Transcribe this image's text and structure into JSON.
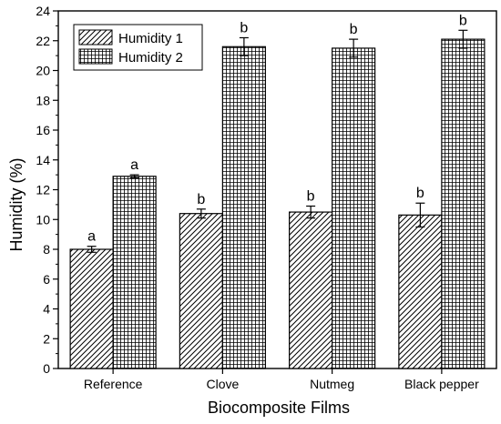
{
  "chart_data": {
    "type": "bar",
    "title": "",
    "xlabel": "Biocomposite Films",
    "ylabel": "Humidity (%)",
    "ylim": [
      0,
      24
    ],
    "yticks": [
      0,
      2,
      4,
      6,
      8,
      10,
      12,
      14,
      16,
      18,
      20,
      22,
      24
    ],
    "categories": [
      "Reference",
      "Clove",
      "Nutmeg",
      "Black pepper"
    ],
    "series": [
      {
        "name": "Humidity 1",
        "pattern": "diagonal-hatch",
        "values": [
          8.0,
          10.4,
          10.5,
          10.3
        ],
        "errors": [
          0.2,
          0.3,
          0.4,
          0.8
        ],
        "letters": [
          "a",
          "b",
          "b",
          "b"
        ]
      },
      {
        "name": "Humidity 2",
        "pattern": "grid-hatch",
        "values": [
          12.9,
          21.6,
          21.5,
          22.1
        ],
        "errors": [
          0.1,
          0.6,
          0.6,
          0.6
        ],
        "letters": [
          "a",
          "b",
          "b",
          "b"
        ]
      }
    ],
    "legend_position": "top-left",
    "grid": false
  },
  "colors": {
    "bar_fill": "#ffffff",
    "stroke": "#000000"
  }
}
